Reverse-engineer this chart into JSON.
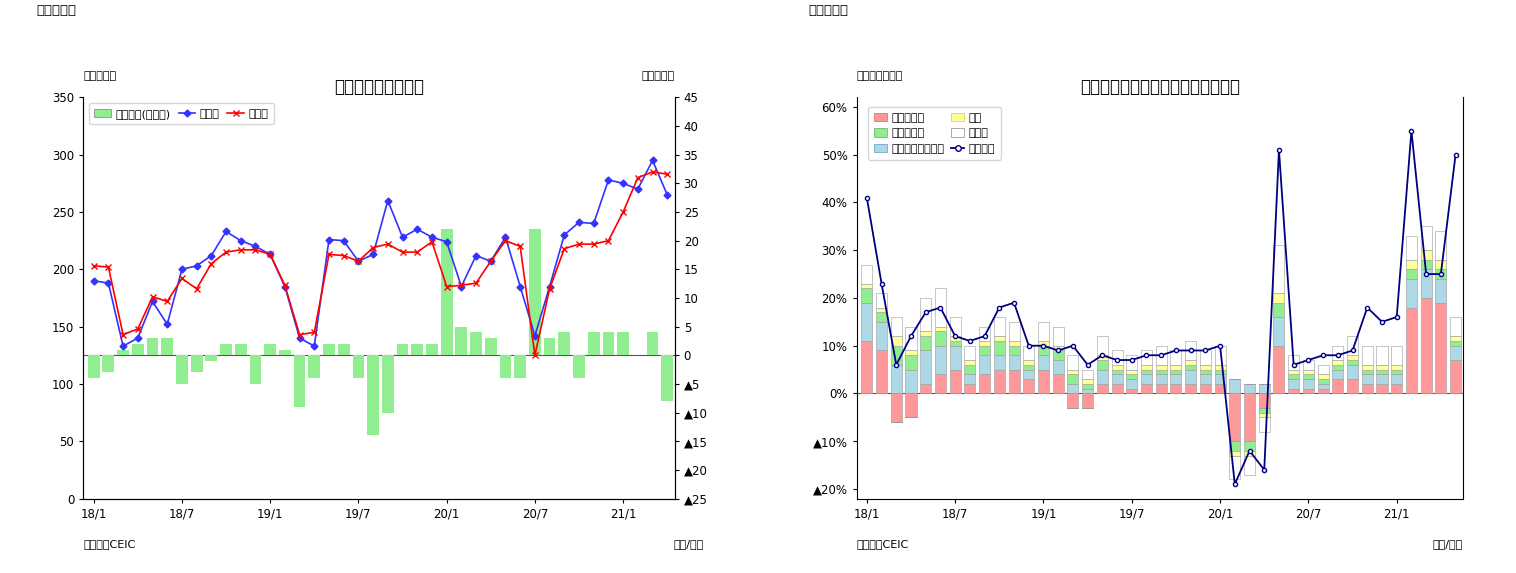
{
  "chart3": {
    "title": "ベトナムの貿易収支",
    "supertitle": "（図表３）",
    "ylabel_left": "（億ドル）",
    "ylabel_right": "（億ドル）",
    "xlabel": "（年/月）",
    "source": "（資料）CEIC",
    "legend_trade": "貿易収支(右目盛)",
    "legend_export": "輸出額",
    "legend_import": "輸入額",
    "xtick_labels": [
      "18/1",
      "18/7",
      "19/1",
      "19/7",
      "20/1",
      "20/7",
      "21/1"
    ],
    "xtick_positions": [
      0,
      6,
      12,
      18,
      24,
      30,
      36
    ],
    "bar_color": "#90EE90",
    "line_export_color": "#3333FF",
    "line_import_color": "#FF0000",
    "trade_bal": [
      -4,
      -3,
      1,
      2,
      3,
      3,
      -5,
      -3,
      -1,
      2,
      2,
      -5,
      2,
      1,
      -9,
      -4,
      2,
      2,
      -4,
      -14,
      -10,
      2,
      2,
      2,
      22,
      5,
      4,
      3,
      -4,
      -4,
      22,
      3,
      4,
      -4,
      4,
      4,
      4,
      0,
      4,
      -8
    ],
    "exports": [
      190,
      188,
      133,
      140,
      172,
      152,
      200,
      203,
      212,
      233,
      225,
      220,
      213,
      185,
      140,
      133,
      226,
      225,
      207,
      213,
      260,
      228,
      235,
      228,
      224,
      185,
      212,
      207,
      228,
      185,
      142,
      185,
      230,
      241,
      240,
      278,
      275,
      270,
      295,
      265
    ],
    "imports": [
      203,
      202,
      143,
      148,
      176,
      172,
      192,
      183,
      205,
      215,
      217,
      217,
      213,
      186,
      143,
      145,
      213,
      212,
      207,
      219,
      222,
      215,
      215,
      224,
      185,
      186,
      188,
      207,
      225,
      220,
      125,
      183,
      218,
      222,
      222,
      225,
      250,
      280,
      285,
      283
    ]
  },
  "chart4": {
    "title": "ベトナム　輸出の伸び率（品目別）",
    "supertitle": "（図表４）",
    "ylabel_left": "（前年同月比）",
    "xlabel": "（年/月）",
    "source": "（資料）CEIC",
    "legend_phone": "電話・部品",
    "legend_electric": "電気製品・同部品",
    "legend_other": "その他",
    "legend_textile": "織物・衣類",
    "legend_shoes": "履物",
    "legend_total": "輸出合計",
    "yticks": [
      -0.2,
      -0.1,
      0.0,
      0.1,
      0.2,
      0.3,
      0.4,
      0.5,
      0.6
    ],
    "yticklabels": [
      "┥20%",
      "┥10%",
      "0%",
      "10%",
      "20%",
      "30%",
      "40%",
      "50%",
      "60%"
    ],
    "xtick_labels": [
      "18/1",
      "18/7",
      "19/1",
      "19/7",
      "20/1",
      "20/7",
      "21/1"
    ],
    "xtick_positions": [
      0,
      6,
      12,
      18,
      24,
      30,
      36
    ],
    "color_phone": "#FF9999",
    "color_electric": "#ADD8E6",
    "color_textile": "#90EE90",
    "color_shoes": "#FFFF99",
    "color_other": "#FFFFFF",
    "color_total_line": "#000080",
    "phone": [
      0.11,
      0.09,
      -0.06,
      -0.05,
      0.02,
      0.04,
      0.05,
      0.02,
      0.04,
      0.05,
      0.05,
      0.03,
      0.05,
      0.04,
      -0.03,
      -0.03,
      0.02,
      0.02,
      0.01,
      0.02,
      0.02,
      0.02,
      0.02,
      0.02,
      0.02,
      -0.1,
      -0.1,
      -0.03,
      0.1,
      0.01,
      0.01,
      0.01,
      0.03,
      0.03,
      0.02,
      0.02,
      0.02,
      0.18,
      0.2,
      0.19,
      0.07
    ],
    "electric": [
      0.08,
      0.06,
      0.06,
      0.05,
      0.07,
      0.06,
      0.05,
      0.02,
      0.04,
      0.03,
      0.03,
      0.02,
      0.03,
      0.03,
      0.02,
      0.01,
      0.03,
      0.02,
      0.02,
      0.02,
      0.02,
      0.02,
      0.03,
      0.02,
      0.02,
      0.03,
      0.02,
      0.02,
      0.06,
      0.02,
      0.02,
      0.01,
      0.02,
      0.03,
      0.02,
      0.02,
      0.02,
      0.06,
      0.06,
      0.05,
      0.03
    ],
    "textile": [
      0.03,
      0.02,
      0.04,
      0.03,
      0.03,
      0.03,
      0.01,
      0.02,
      0.02,
      0.03,
      0.02,
      0.01,
      0.02,
      0.02,
      0.02,
      0.01,
      0.02,
      0.01,
      0.01,
      0.01,
      0.01,
      0.01,
      0.01,
      0.01,
      0.01,
      -0.02,
      -0.02,
      -0.01,
      0.03,
      0.01,
      0.01,
      0.01,
      0.01,
      0.01,
      0.01,
      0.01,
      0.01,
      0.02,
      0.02,
      0.02,
      0.01
    ],
    "shoes": [
      0.01,
      0.01,
      0.02,
      0.01,
      0.01,
      0.01,
      0.01,
      0.01,
      0.01,
      0.01,
      0.01,
      0.01,
      0.01,
      0.01,
      0.01,
      0.01,
      0.01,
      0.01,
      0.01,
      0.01,
      0.01,
      0.01,
      0.01,
      0.01,
      0.01,
      -0.01,
      -0.01,
      -0.01,
      0.02,
      0.01,
      0.01,
      0.01,
      0.01,
      0.01,
      0.01,
      0.01,
      0.01,
      0.02,
      0.02,
      0.02,
      0.01
    ],
    "other": [
      0.04,
      0.03,
      0.04,
      0.05,
      0.07,
      0.08,
      0.04,
      0.03,
      0.03,
      0.04,
      0.04,
      0.03,
      0.04,
      0.04,
      0.03,
      0.02,
      0.04,
      0.03,
      0.03,
      0.03,
      0.04,
      0.03,
      0.04,
      0.03,
      0.04,
      -0.05,
      -0.04,
      -0.03,
      0.1,
      0.03,
      0.02,
      0.02,
      0.03,
      0.04,
      0.04,
      0.04,
      0.04,
      0.05,
      0.05,
      0.06,
      0.04
    ],
    "total": [
      0.41,
      0.23,
      0.06,
      0.12,
      0.17,
      0.18,
      0.12,
      0.11,
      0.12,
      0.18,
      0.19,
      0.1,
      0.1,
      0.09,
      0.1,
      0.06,
      0.08,
      0.07,
      0.07,
      0.08,
      0.08,
      0.09,
      0.09,
      0.09,
      0.1,
      -0.19,
      -0.12,
      -0.16,
      0.51,
      0.06,
      0.07,
      0.08,
      0.08,
      0.09,
      0.18,
      0.15,
      0.16,
      0.55,
      0.25,
      0.25,
      0.5
    ]
  }
}
